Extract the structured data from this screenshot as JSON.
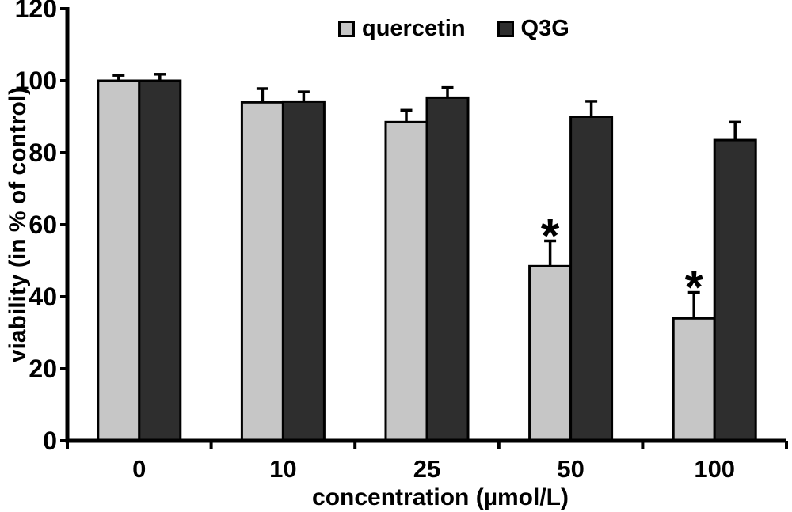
{
  "chart_data": {
    "type": "bar",
    "title": "",
    "xlabel": "concentration (µmol/L)",
    "ylabel": "viability (in % of control)",
    "categories": [
      "0",
      "10",
      "25",
      "50",
      "100"
    ],
    "series": [
      {
        "name": "quercetin",
        "color": "#c6c6c6",
        "values": [
          100,
          94,
          88.5,
          48.5,
          34
        ],
        "errors": [
          1.5,
          3.8,
          3.3,
          7,
          7.2
        ],
        "significant": [
          false,
          false,
          false,
          true,
          true
        ]
      },
      {
        "name": "Q3G",
        "color": "#2e2e2e",
        "values": [
          100,
          94.2,
          95.3,
          90,
          83.5
        ],
        "errors": [
          1.8,
          2.7,
          2.8,
          4.3,
          5
        ],
        "significant": [
          false,
          false,
          false,
          false,
          false
        ]
      }
    ],
    "ylim": [
      0,
      120
    ],
    "yticks": [
      0,
      20,
      40,
      60,
      80,
      100,
      120
    ],
    "significance_marker": "*",
    "error_bars": "upper",
    "legend_position": "top-center",
    "grid": false,
    "axis_color": "#000000",
    "background_color": "#ffffff"
  }
}
